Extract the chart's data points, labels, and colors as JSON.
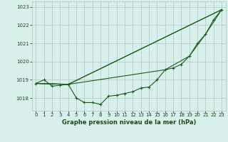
{
  "title": "Graphe pression niveau de la mer (hPa)",
  "background_color": "#d8f0ec",
  "grid_color": "#b8ccc8",
  "line_color": "#1a5c1a",
  "marker_color": "#1a5c1a",
  "text_color": "#1a4a1a",
  "xlim": [
    -0.5,
    23.5
  ],
  "ylim": [
    1017.3,
    1023.3
  ],
  "yticks": [
    1018,
    1019,
    1020,
    1021,
    1022,
    1023
  ],
  "xticks": [
    0,
    1,
    2,
    3,
    4,
    5,
    6,
    7,
    8,
    9,
    10,
    11,
    12,
    13,
    14,
    15,
    16,
    17,
    18,
    19,
    20,
    21,
    22,
    23
  ],
  "curves": [
    {
      "x": [
        0,
        1,
        2,
        3,
        4,
        5,
        6,
        7,
        8,
        9,
        10,
        11,
        12,
        13,
        14,
        15,
        16,
        17,
        18,
        19,
        20,
        21,
        22,
        23
      ],
      "y": [
        1018.8,
        1019.0,
        1018.65,
        1018.7,
        1018.75,
        1018.0,
        1017.75,
        1017.75,
        1017.65,
        1018.1,
        1018.15,
        1018.25,
        1018.35,
        1018.55,
        1018.6,
        1019.0,
        1019.55,
        1019.65,
        1019.85,
        1020.3,
        1021.0,
        1021.5,
        1022.3,
        1022.85
      ],
      "has_markers": true
    },
    {
      "x": [
        0,
        4,
        23
      ],
      "y": [
        1018.8,
        1018.75,
        1022.85
      ],
      "has_markers": false
    },
    {
      "x": [
        0,
        4,
        23
      ],
      "y": [
        1018.8,
        1018.75,
        1022.85
      ],
      "has_markers": false
    },
    {
      "x": [
        0,
        4,
        16,
        19,
        21,
        23
      ],
      "y": [
        1018.8,
        1018.75,
        1019.55,
        1020.3,
        1021.5,
        1022.85
      ],
      "has_markers": false
    }
  ]
}
